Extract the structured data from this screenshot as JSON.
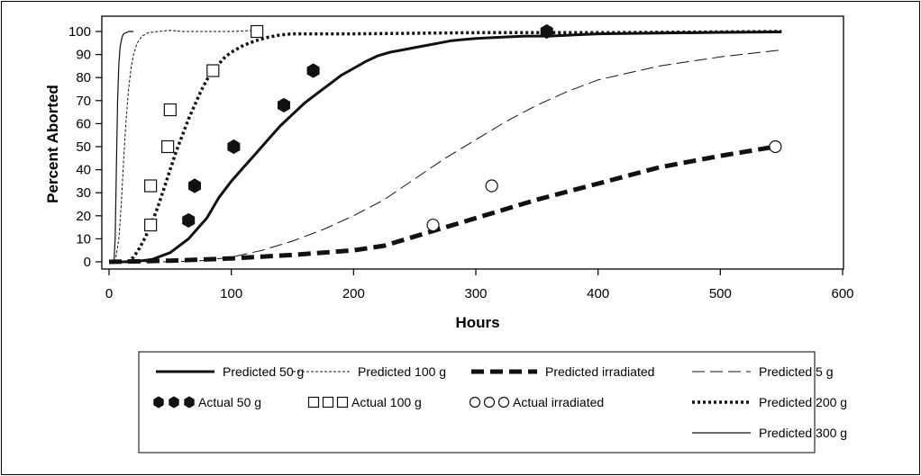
{
  "chart_data": {
    "type": "line",
    "xlabel": "Hours",
    "ylabel": "Percent Aborted",
    "xlim": [
      0,
      600
    ],
    "ylim": [
      0,
      100
    ],
    "x_ticks": [
      0,
      100,
      200,
      300,
      400,
      500,
      600
    ],
    "y_ticks": [
      0,
      10,
      20,
      30,
      40,
      50,
      60,
      70,
      80,
      90,
      100
    ],
    "grid": false,
    "legend_position": "bottom",
    "series": [
      {
        "name": "Predicted 50 g",
        "kind": "line",
        "style": "solid-thick",
        "x": [
          0,
          20,
          35,
          50,
          65,
          80,
          90,
          100,
          110,
          120,
          130,
          140,
          150,
          160,
          170,
          180,
          190,
          200,
          210,
          220,
          230,
          240,
          250,
          260,
          270,
          280,
          300,
          320,
          340,
          360,
          400,
          450,
          500,
          550
        ],
        "y": [
          0,
          0,
          1,
          4,
          10,
          19,
          28,
          35,
          41,
          47,
          53,
          59,
          64,
          69,
          73,
          77,
          81,
          84,
          87,
          89.5,
          91,
          92,
          93,
          94,
          95,
          96,
          97,
          97.5,
          98,
          98,
          99,
          99.3,
          99.6,
          99.8
        ]
      },
      {
        "name": "Predicted 100 g",
        "kind": "line",
        "style": "short-dash-thin",
        "x": [
          5,
          8,
          10,
          12,
          14,
          16,
          18,
          20,
          23,
          27,
          32,
          40,
          50,
          60,
          80,
          100,
          120
        ],
        "y": [
          0,
          10,
          25,
          45,
          62,
          75,
          84,
          90,
          95,
          98,
          99.5,
          100,
          100.5,
          100,
          100,
          100,
          100.5
        ]
      },
      {
        "name": "Predicted irradiated",
        "kind": "line",
        "style": "long-dash-thick",
        "x": [
          0,
          50,
          100,
          150,
          200,
          225,
          250,
          275,
          300,
          350,
          400,
          450,
          500,
          545
        ],
        "y": [
          0,
          0.5,
          1.5,
          3,
          5,
          7,
          11,
          15,
          19,
          27,
          34,
          41,
          46,
          50
        ]
      },
      {
        "name": "Predicted 5 g",
        "kind": "line",
        "style": "long-dash-thin",
        "x": [
          0,
          50,
          75,
          100,
          125,
          150,
          175,
          200,
          225,
          250,
          275,
          300,
          325,
          350,
          375,
          400,
          450,
          500,
          550
        ],
        "y": [
          0,
          0,
          0.5,
          2,
          5,
          9,
          14,
          20,
          27,
          36,
          45,
          53,
          61,
          68,
          74,
          79,
          85,
          89,
          92
        ]
      },
      {
        "name": "Predicted 200 g",
        "kind": "line",
        "style": "dotted-thick",
        "x": [
          15,
          20,
          25,
          30,
          35,
          40,
          45,
          50,
          55,
          60,
          65,
          70,
          75,
          80,
          85,
          90,
          95,
          100,
          110,
          120,
          130,
          140,
          150,
          160,
          200,
          300,
          400,
          500,
          550
        ],
        "y": [
          0,
          2,
          6,
          11,
          17,
          24,
          32,
          40,
          48,
          55,
          62,
          68,
          74,
          79,
          83,
          86,
          89,
          91,
          94,
          96,
          97.5,
          98.5,
          99,
          99,
          99,
          99.5,
          99.5,
          99.8,
          100
        ]
      },
      {
        "name": "Predicted 300 g",
        "kind": "line",
        "style": "solid-thin",
        "x": [
          0,
          4,
          5,
          6,
          7,
          8,
          9,
          10,
          11,
          12,
          14,
          16,
          20
        ],
        "y": [
          0,
          0,
          10,
          40,
          70,
          86,
          93,
          96,
          98,
          99,
          99.5,
          100,
          100
        ]
      },
      {
        "name": "Actual 50 g",
        "kind": "marker",
        "marker": "hexagon",
        "x": [
          65,
          70,
          102,
          143,
          167,
          358
        ],
        "y": [
          18,
          33,
          50,
          68,
          83,
          100
        ]
      },
      {
        "name": "Actual 100 g",
        "kind": "marker",
        "marker": "square",
        "x": [
          34,
          34,
          48,
          50,
          85,
          121
        ],
        "y": [
          16,
          33,
          50,
          66,
          83,
          100
        ]
      },
      {
        "name": "Actual irradiated",
        "kind": "marker",
        "marker": "circle",
        "x": [
          265,
          313,
          545
        ],
        "y": [
          16,
          33,
          50
        ]
      }
    ],
    "legend_rows": [
      [
        "Predicted 50 g",
        "Predicted 100 g",
        "Predicted irradiated",
        "Predicted 5 g"
      ],
      [
        "Actual 50 g",
        "Actual 100 g",
        "Actual irradiated",
        "Predicted 200 g"
      ],
      [
        "",
        "",
        "",
        "Predicted 300 g"
      ]
    ]
  }
}
